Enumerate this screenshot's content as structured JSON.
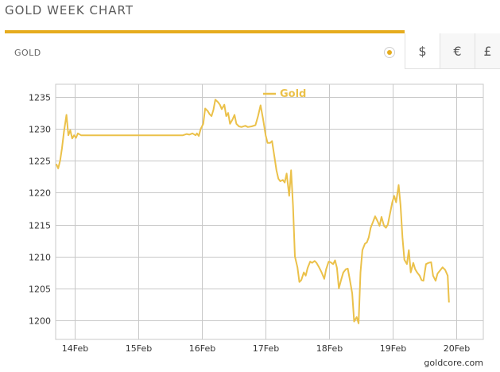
{
  "page": {
    "title": "GOLD WEEK CHART",
    "attribution": "goldcore.com"
  },
  "tabs": {
    "metal_label": "GOLD",
    "metal_selected": true,
    "currencies": [
      {
        "symbol": "$",
        "name": "usd",
        "selected": true
      },
      {
        "symbol": "€",
        "name": "eur",
        "selected": false
      },
      {
        "symbol": "£",
        "name": "gbp",
        "selected": false
      }
    ]
  },
  "colors": {
    "accent": "#e6ac1e",
    "line": "#ebc14a",
    "grid": "#c8c8c8"
  },
  "chart_data": {
    "type": "line",
    "title": "",
    "xlabel": "",
    "ylabel": "",
    "legend": "top-center",
    "grid": true,
    "ylim": [
      1197,
      1237
    ],
    "xlim": [
      13.7,
      20.42
    ],
    "yticks": [
      1200,
      1205,
      1210,
      1215,
      1220,
      1225,
      1230,
      1235
    ],
    "xticks": [
      {
        "x": 14,
        "label": "14Feb"
      },
      {
        "x": 15,
        "label": "15Feb"
      },
      {
        "x": 16,
        "label": "16Feb"
      },
      {
        "x": 17,
        "label": "17Feb"
      },
      {
        "x": 18,
        "label": "18Feb"
      },
      {
        "x": 19,
        "label": "19Feb"
      },
      {
        "x": 20,
        "label": "20Feb"
      }
    ],
    "series": [
      {
        "name": "Gold",
        "points": [
          [
            13.71,
            1224.5
          ],
          [
            13.74,
            1223.8
          ],
          [
            13.77,
            1225.0
          ],
          [
            13.8,
            1227.0
          ],
          [
            13.83,
            1229.5
          ],
          [
            13.87,
            1232.2
          ],
          [
            13.9,
            1229.0
          ],
          [
            13.93,
            1229.8
          ],
          [
            13.96,
            1228.5
          ],
          [
            13.99,
            1229.0
          ],
          [
            14.02,
            1228.6
          ],
          [
            14.05,
            1229.3
          ],
          [
            14.1,
            1229.0
          ],
          [
            14.5,
            1229.0
          ],
          [
            15.0,
            1229.0
          ],
          [
            15.5,
            1229.0
          ],
          [
            15.7,
            1229.0
          ],
          [
            15.76,
            1229.2
          ],
          [
            15.8,
            1229.1
          ],
          [
            15.85,
            1229.3
          ],
          [
            15.9,
            1229.0
          ],
          [
            15.92,
            1229.3
          ],
          [
            15.95,
            1228.9
          ],
          [
            15.98,
            1230.0
          ],
          [
            16.02,
            1230.8
          ],
          [
            16.05,
            1233.2
          ],
          [
            16.09,
            1232.8
          ],
          [
            16.12,
            1232.3
          ],
          [
            16.15,
            1232.0
          ],
          [
            16.18,
            1233.0
          ],
          [
            16.21,
            1234.6
          ],
          [
            16.25,
            1234.2
          ],
          [
            16.28,
            1233.8
          ],
          [
            16.31,
            1233.1
          ],
          [
            16.35,
            1233.8
          ],
          [
            16.38,
            1232.0
          ],
          [
            16.41,
            1232.5
          ],
          [
            16.44,
            1230.8
          ],
          [
            16.48,
            1231.5
          ],
          [
            16.51,
            1232.2
          ],
          [
            16.54,
            1230.8
          ],
          [
            16.58,
            1230.4
          ],
          [
            16.62,
            1230.3
          ],
          [
            16.68,
            1230.5
          ],
          [
            16.72,
            1230.3
          ],
          [
            16.78,
            1230.4
          ],
          [
            16.84,
            1230.6
          ],
          [
            16.88,
            1232.0
          ],
          [
            16.92,
            1233.7
          ],
          [
            16.96,
            1231.5
          ],
          [
            17.0,
            1229.0
          ],
          [
            17.03,
            1227.8
          ],
          [
            17.07,
            1227.8
          ],
          [
            17.1,
            1228.1
          ],
          [
            17.14,
            1225.5
          ],
          [
            17.17,
            1223.5
          ],
          [
            17.2,
            1222.2
          ],
          [
            17.23,
            1221.8
          ],
          [
            17.27,
            1222.0
          ],
          [
            17.3,
            1221.6
          ],
          [
            17.33,
            1223.0
          ],
          [
            17.37,
            1219.5
          ],
          [
            17.4,
            1223.5
          ],
          [
            17.43,
            1218.0
          ],
          [
            17.46,
            1210.0
          ],
          [
            17.5,
            1208.3
          ],
          [
            17.53,
            1206.0
          ],
          [
            17.56,
            1206.3
          ],
          [
            17.6,
            1207.5
          ],
          [
            17.63,
            1207.0
          ],
          [
            17.66,
            1208.2
          ],
          [
            17.7,
            1209.2
          ],
          [
            17.73,
            1209.0
          ],
          [
            17.77,
            1209.3
          ],
          [
            17.8,
            1209.0
          ],
          [
            17.84,
            1208.3
          ],
          [
            17.88,
            1207.5
          ],
          [
            17.92,
            1206.5
          ],
          [
            17.95,
            1208.0
          ],
          [
            17.99,
            1209.2
          ],
          [
            18.02,
            1209.1
          ],
          [
            18.06,
            1208.8
          ],
          [
            18.09,
            1209.4
          ],
          [
            18.12,
            1208.2
          ],
          [
            18.15,
            1205.0
          ],
          [
            18.19,
            1206.5
          ],
          [
            18.22,
            1207.5
          ],
          [
            18.26,
            1208.0
          ],
          [
            18.29,
            1208.1
          ],
          [
            18.32,
            1206.5
          ],
          [
            18.36,
            1204.2
          ],
          [
            18.39,
            1199.8
          ],
          [
            18.43,
            1200.5
          ],
          [
            18.46,
            1199.5
          ],
          [
            18.49,
            1207.5
          ],
          [
            18.52,
            1211.0
          ],
          [
            18.56,
            1212.0
          ],
          [
            18.59,
            1212.2
          ],
          [
            18.62,
            1213.0
          ],
          [
            18.65,
            1214.5
          ],
          [
            18.69,
            1215.5
          ],
          [
            18.72,
            1216.3
          ],
          [
            18.76,
            1215.5
          ],
          [
            18.79,
            1214.8
          ],
          [
            18.82,
            1216.2
          ],
          [
            18.86,
            1214.8
          ],
          [
            18.89,
            1214.5
          ],
          [
            18.92,
            1215.0
          ],
          [
            18.96,
            1217.0
          ],
          [
            18.99,
            1218.5
          ],
          [
            19.02,
            1219.5
          ],
          [
            19.05,
            1218.5
          ],
          [
            19.09,
            1221.2
          ],
          [
            19.12,
            1218.0
          ],
          [
            19.15,
            1213.0
          ],
          [
            19.18,
            1209.5
          ],
          [
            19.22,
            1208.8
          ],
          [
            19.25,
            1211.0
          ],
          [
            19.28,
            1207.5
          ],
          [
            19.32,
            1209.0
          ],
          [
            19.35,
            1208.0
          ],
          [
            19.38,
            1207.5
          ],
          [
            19.42,
            1207.0
          ],
          [
            19.45,
            1206.3
          ],
          [
            19.48,
            1206.2
          ],
          [
            19.52,
            1208.8
          ],
          [
            19.56,
            1209.0
          ],
          [
            19.6,
            1209.1
          ],
          [
            19.63,
            1207.0
          ],
          [
            19.67,
            1206.2
          ],
          [
            19.7,
            1207.3
          ],
          [
            19.74,
            1207.8
          ],
          [
            19.78,
            1208.3
          ],
          [
            19.82,
            1207.9
          ],
          [
            19.86,
            1207.0
          ],
          [
            19.88,
            1202.8
          ]
        ]
      }
    ]
  }
}
